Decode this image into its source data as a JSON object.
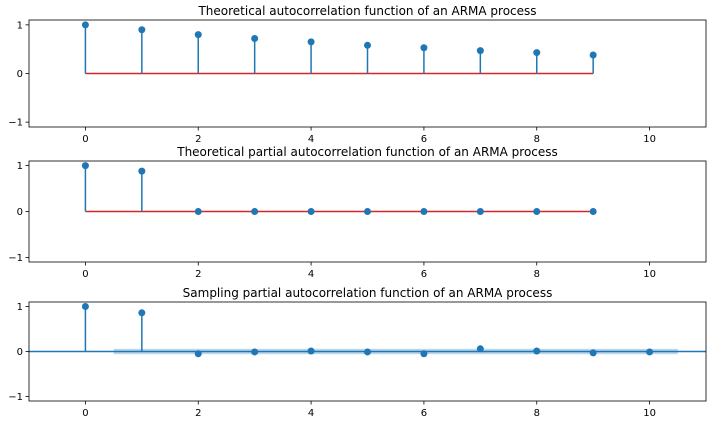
{
  "colors": {
    "stem": "#1f77b4",
    "baseline_theoretical": "#d62728",
    "baseline_sample": "#1f77b4",
    "confidence_band": "#a6c8e4"
  },
  "chart_data": [
    {
      "type": "stem",
      "title": "Theoretical autocorrelation function of an ARMA process",
      "x": [
        0,
        1,
        2,
        3,
        4,
        5,
        6,
        7,
        8,
        9
      ],
      "values": [
        1.0,
        0.9,
        0.8,
        0.72,
        0.65,
        0.58,
        0.53,
        0.47,
        0.43,
        0.38
      ],
      "xlim": [
        -1,
        11
      ],
      "ylim": [
        -1.1,
        1.1
      ],
      "xticks": [
        0,
        2,
        4,
        6,
        8,
        10
      ],
      "yticks": [
        -1,
        0,
        1
      ],
      "baseline": {
        "from": 0,
        "to": 9,
        "color_key": "baseline_theoretical"
      }
    },
    {
      "type": "stem",
      "title": "Theoretical partial autocorrelation function of an ARMA process",
      "x": [
        0,
        1,
        2,
        3,
        4,
        5,
        6,
        7,
        8,
        9
      ],
      "values": [
        1.0,
        0.88,
        0.0,
        0.0,
        0.0,
        0.0,
        0.0,
        0.0,
        0.0,
        0.0
      ],
      "xlim": [
        -1,
        11
      ],
      "ylim": [
        -1.1,
        1.1
      ],
      "xticks": [
        0,
        2,
        4,
        6,
        8,
        10
      ],
      "yticks": [
        -1,
        0,
        1
      ],
      "baseline": {
        "from": 0,
        "to": 9,
        "color_key": "baseline_theoretical"
      }
    },
    {
      "type": "stem",
      "title": "Sampling partial autocorrelation function of an ARMA process",
      "x": [
        0,
        1,
        2,
        3,
        4,
        5,
        6,
        7,
        8,
        9,
        10
      ],
      "values": [
        1.0,
        0.86,
        -0.05,
        -0.01,
        0.01,
        -0.01,
        -0.05,
        0.06,
        0.01,
        -0.03,
        -0.01
      ],
      "xlim": [
        -1,
        11
      ],
      "ylim": [
        -1.1,
        1.1
      ],
      "xticks": [
        0,
        2,
        4,
        6,
        8,
        10
      ],
      "yticks": [
        -1,
        0,
        1
      ],
      "baseline": {
        "from": -1,
        "to": 11,
        "color_key": "baseline_sample"
      },
      "confidence_band": {
        "x": [
          0.5,
          10.5
        ],
        "y": [
          -0.06,
          0.06
        ]
      }
    }
  ]
}
